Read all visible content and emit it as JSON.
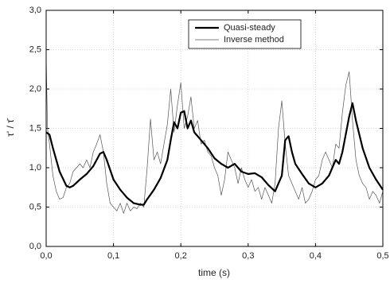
{
  "chart_data": {
    "type": "line",
    "xlabel": "time (s)",
    "ylabel": "τ' / τ̄",
    "xlim": [
      0,
      0.5
    ],
    "ylim": [
      0,
      3
    ],
    "xticks": [
      {
        "value": 0,
        "label": "0,0"
      },
      {
        "value": 0.1,
        "label": "0,1"
      },
      {
        "value": 0.2,
        "label": "0,2"
      },
      {
        "value": 0.3,
        "label": "0,3"
      },
      {
        "value": 0.4,
        "label": "0,4"
      },
      {
        "value": 0.5,
        "label": "0,5"
      }
    ],
    "yticks": [
      {
        "value": 0,
        "label": "0,0"
      },
      {
        "value": 0.5,
        "label": "0,5"
      },
      {
        "value": 1,
        "label": "1,0"
      },
      {
        "value": 1.5,
        "label": "1,5"
      },
      {
        "value": 2,
        "label": "2,0"
      },
      {
        "value": 2.5,
        "label": "2,5"
      },
      {
        "value": 3,
        "label": "3,0"
      }
    ],
    "grid": true,
    "legend": "upper right",
    "series": [
      {
        "name": "Quasi-steady",
        "color": "#000000",
        "x": [
          0,
          0.005,
          0.01,
          0.02,
          0.03,
          0.035,
          0.04,
          0.05,
          0.06,
          0.07,
          0.08,
          0.085,
          0.09,
          0.1,
          0.11,
          0.12,
          0.13,
          0.14,
          0.145,
          0.15,
          0.16,
          0.17,
          0.18,
          0.185,
          0.19,
          0.195,
          0.2,
          0.205,
          0.21,
          0.215,
          0.22,
          0.23,
          0.24,
          0.25,
          0.26,
          0.27,
          0.28,
          0.29,
          0.3,
          0.31,
          0.32,
          0.33,
          0.34,
          0.35,
          0.355,
          0.36,
          0.365,
          0.37,
          0.38,
          0.39,
          0.4,
          0.41,
          0.42,
          0.43,
          0.435,
          0.44,
          0.45,
          0.455,
          0.46,
          0.47,
          0.48,
          0.49,
          0.5
        ],
        "values": [
          1.45,
          1.42,
          1.25,
          0.95,
          0.77,
          0.75,
          0.77,
          0.85,
          0.92,
          1.02,
          1.18,
          1.2,
          1.1,
          0.85,
          0.72,
          0.62,
          0.55,
          0.53,
          0.53,
          0.6,
          0.72,
          0.87,
          1.1,
          1.35,
          1.58,
          1.5,
          1.7,
          1.72,
          1.5,
          1.6,
          1.45,
          1.35,
          1.25,
          1.12,
          1.05,
          1.0,
          1.05,
          0.95,
          0.92,
          0.93,
          0.88,
          0.78,
          0.7,
          0.9,
          1.35,
          1.4,
          1.2,
          1.05,
          0.92,
          0.8,
          0.75,
          0.8,
          0.9,
          1.1,
          1.05,
          1.2,
          1.65,
          1.82,
          1.6,
          1.25,
          1.0,
          0.85,
          0.72
        ]
      },
      {
        "name": "Inverse method",
        "color": "#555555",
        "x": [
          0,
          0.002,
          0.005,
          0.01,
          0.015,
          0.02,
          0.025,
          0.03,
          0.035,
          0.04,
          0.045,
          0.05,
          0.055,
          0.06,
          0.065,
          0.07,
          0.075,
          0.08,
          0.085,
          0.09,
          0.095,
          0.1,
          0.105,
          0.11,
          0.115,
          0.12,
          0.125,
          0.13,
          0.135,
          0.14,
          0.145,
          0.15,
          0.155,
          0.16,
          0.165,
          0.17,
          0.175,
          0.18,
          0.185,
          0.19,
          0.195,
          0.2,
          0.205,
          0.21,
          0.215,
          0.22,
          0.225,
          0.23,
          0.235,
          0.24,
          0.245,
          0.25,
          0.255,
          0.26,
          0.265,
          0.27,
          0.275,
          0.28,
          0.285,
          0.29,
          0.295,
          0.3,
          0.305,
          0.31,
          0.315,
          0.32,
          0.325,
          0.33,
          0.335,
          0.34,
          0.345,
          0.35,
          0.355,
          0.36,
          0.365,
          0.37,
          0.375,
          0.38,
          0.385,
          0.39,
          0.395,
          0.4,
          0.405,
          0.41,
          0.415,
          0.42,
          0.425,
          0.43,
          0.435,
          0.44,
          0.445,
          0.45,
          0.455,
          0.46,
          0.465,
          0.47,
          0.475,
          0.48,
          0.485,
          0.49,
          0.495,
          0.5
        ],
        "values": [
          2.4,
          1.5,
          1.3,
          0.9,
          0.7,
          0.6,
          0.62,
          0.75,
          0.8,
          0.95,
          1.0,
          1.05,
          1.0,
          1.1,
          1.0,
          1.2,
          1.3,
          1.42,
          1.2,
          0.8,
          0.55,
          0.5,
          0.45,
          0.55,
          0.42,
          0.55,
          0.45,
          0.5,
          0.48,
          0.55,
          0.5,
          1.0,
          1.62,
          1.1,
          1.2,
          1.05,
          1.3,
          1.55,
          2.0,
          1.45,
          1.8,
          2.08,
          1.5,
          1.65,
          1.9,
          1.5,
          1.6,
          1.3,
          1.35,
          1.2,
          1.15,
          1.0,
          0.9,
          0.65,
          0.85,
          1.2,
          1.1,
          1.0,
          0.8,
          1.0,
          0.85,
          0.75,
          0.85,
          0.7,
          0.75,
          0.6,
          0.75,
          0.65,
          0.55,
          0.8,
          1.5,
          1.85,
          1.3,
          0.9,
          0.8,
          0.7,
          0.6,
          0.75,
          0.55,
          0.6,
          0.7,
          0.85,
          0.9,
          1.1,
          1.2,
          1.1,
          1.0,
          1.3,
          1.25,
          1.7,
          2.05,
          2.22,
          1.6,
          1.1,
          0.9,
          0.8,
          0.75,
          0.6,
          0.7,
          0.65,
          0.55,
          0.7
        ]
      }
    ]
  }
}
